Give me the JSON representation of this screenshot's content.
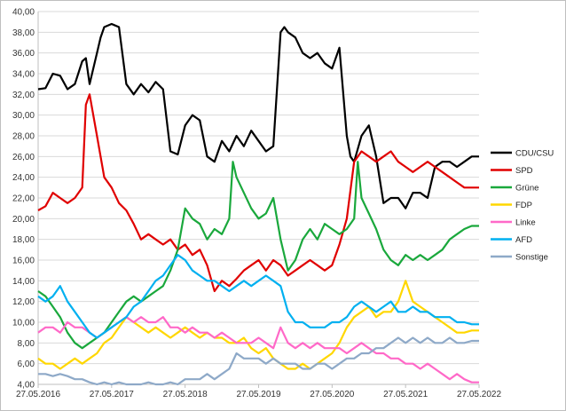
{
  "chart_data": {
    "type": "line",
    "title": "",
    "xlabel": "",
    "ylabel": "",
    "ylim": [
      4,
      40
    ],
    "y_ticks": [
      "4,00",
      "6,00",
      "8,00",
      "10,00",
      "12,00",
      "14,00",
      "16,00",
      "18,00",
      "20,00",
      "22,00",
      "24,00",
      "26,00",
      "28,00",
      "30,00",
      "32,00",
      "34,00",
      "36,00",
      "38,00",
      "40,00"
    ],
    "x_ticks": [
      "27.05.2016",
      "27.05.2017",
      "27.05.2018",
      "27.05.2019",
      "27.05.2020",
      "27.05.2021",
      "27.05.2022"
    ],
    "x_range": [
      2016.4,
      2022.4
    ],
    "grid": "horizontal",
    "legend_position": "right",
    "series": [
      {
        "name": "CDU/CSU",
        "color": "#000000",
        "x": [
          2016.4,
          2016.5,
          2016.6,
          2016.7,
          2016.8,
          2016.9,
          2017.0,
          2017.05,
          2017.1,
          2017.2,
          2017.25,
          2017.3,
          2017.4,
          2017.5,
          2017.6,
          2017.7,
          2017.8,
          2017.9,
          2018.0,
          2018.1,
          2018.2,
          2018.3,
          2018.4,
          2018.5,
          2018.6,
          2018.7,
          2018.8,
          2018.9,
          2019.0,
          2019.1,
          2019.2,
          2019.3,
          2019.4,
          2019.5,
          2019.6,
          2019.7,
          2019.75,
          2019.8,
          2019.9,
          2020.0,
          2020.1,
          2020.2,
          2020.3,
          2020.4,
          2020.5,
          2020.6,
          2020.65,
          2020.7,
          2020.8,
          2020.9,
          2021.0,
          2021.1,
          2021.2,
          2021.3,
          2021.4,
          2021.5,
          2021.6,
          2021.7,
          2021.8,
          2021.9,
          2022.0,
          2022.1,
          2022.2,
          2022.3,
          2022.4
        ],
        "values": [
          32.5,
          32.6,
          34.0,
          33.8,
          32.5,
          33.0,
          35.2,
          35.5,
          33.0,
          36.0,
          37.5,
          38.5,
          38.8,
          38.5,
          33.0,
          32.0,
          33.0,
          32.2,
          33.2,
          32.5,
          26.5,
          26.2,
          29.0,
          30.0,
          29.5,
          26.0,
          25.5,
          27.5,
          26.5,
          28.0,
          27.0,
          28.5,
          27.5,
          26.5,
          27.0,
          38.0,
          38.5,
          38.0,
          37.5,
          36.0,
          35.5,
          36.0,
          35.0,
          34.5,
          36.5,
          28.0,
          26.0,
          25.5,
          28.0,
          29.0,
          26.0,
          21.5,
          22.0,
          22.0,
          21.0,
          22.5,
          22.5,
          22.0,
          25.0,
          25.5,
          25.5,
          25.0,
          25.5,
          26.0,
          26.0
        ]
      },
      {
        "name": "SPD",
        "color": "#e00000",
        "x": [
          2016.4,
          2016.5,
          2016.6,
          2016.7,
          2016.8,
          2016.9,
          2017.0,
          2017.05,
          2017.1,
          2017.2,
          2017.3,
          2017.4,
          2017.5,
          2017.6,
          2017.7,
          2017.8,
          2017.9,
          2018.0,
          2018.1,
          2018.2,
          2018.3,
          2018.4,
          2018.5,
          2018.6,
          2018.7,
          2018.8,
          2018.9,
          2019.0,
          2019.1,
          2019.2,
          2019.3,
          2019.4,
          2019.5,
          2019.6,
          2019.7,
          2019.8,
          2019.9,
          2020.0,
          2020.1,
          2020.2,
          2020.3,
          2020.4,
          2020.5,
          2020.6,
          2020.7,
          2020.8,
          2020.9,
          2021.0,
          2021.1,
          2021.2,
          2021.3,
          2021.4,
          2021.5,
          2021.6,
          2021.7,
          2021.8,
          2021.9,
          2022.0,
          2022.1,
          2022.2,
          2022.3,
          2022.4
        ],
        "values": [
          20.8,
          21.2,
          22.5,
          22.0,
          21.5,
          22.0,
          23.0,
          31.0,
          32.0,
          28.0,
          24.0,
          23.0,
          21.5,
          20.8,
          19.5,
          18.0,
          18.5,
          18.0,
          17.5,
          18.0,
          17.0,
          17.5,
          16.5,
          17.0,
          15.5,
          13.0,
          14.0,
          13.5,
          14.2,
          15.0,
          15.5,
          16.0,
          15.0,
          16.0,
          15.5,
          14.5,
          15.0,
          15.5,
          16.0,
          15.5,
          15.0,
          15.5,
          17.5,
          20.0,
          25.5,
          26.5,
          26.0,
          25.5,
          26.0,
          26.5,
          25.5,
          25.0,
          24.5,
          25.0,
          25.5,
          25.0,
          24.5,
          24.0,
          23.5,
          23.0,
          23.0,
          23.0
        ]
      },
      {
        "name": "Grüne",
        "color": "#1aa83c",
        "x": [
          2016.4,
          2016.5,
          2016.6,
          2016.7,
          2016.8,
          2016.9,
          2017.0,
          2017.1,
          2017.2,
          2017.3,
          2017.4,
          2017.5,
          2017.6,
          2017.7,
          2017.8,
          2017.9,
          2018.0,
          2018.1,
          2018.2,
          2018.3,
          2018.4,
          2018.5,
          2018.6,
          2018.7,
          2018.8,
          2018.9,
          2019.0,
          2019.05,
          2019.1,
          2019.2,
          2019.3,
          2019.4,
          2019.5,
          2019.6,
          2019.7,
          2019.8,
          2019.9,
          2020.0,
          2020.1,
          2020.2,
          2020.3,
          2020.4,
          2020.5,
          2020.6,
          2020.7,
          2020.75,
          2020.8,
          2020.9,
          2021.0,
          2021.1,
          2021.2,
          2021.3,
          2021.4,
          2021.5,
          2021.6,
          2021.7,
          2021.8,
          2021.9,
          2022.0,
          2022.1,
          2022.2,
          2022.3,
          2022.4
        ],
        "values": [
          13.0,
          12.5,
          11.5,
          10.5,
          9.0,
          8.0,
          7.5,
          8.0,
          8.5,
          9.0,
          10.0,
          11.0,
          12.0,
          12.5,
          12.0,
          12.5,
          13.0,
          13.5,
          15.0,
          17.0,
          21.0,
          20.0,
          19.5,
          18.0,
          19.0,
          18.5,
          20.0,
          25.5,
          24.0,
          22.5,
          21.0,
          20.0,
          20.5,
          22.0,
          18.0,
          15.0,
          16.0,
          18.0,
          19.0,
          18.0,
          19.5,
          19.0,
          18.5,
          19.0,
          20.0,
          25.5,
          22.0,
          20.5,
          19.0,
          17.0,
          16.0,
          15.5,
          16.5,
          16.0,
          16.5,
          16.0,
          16.5,
          17.0,
          18.0,
          18.5,
          19.0,
          19.3,
          19.3
        ]
      },
      {
        "name": "FDP",
        "color": "#ffd700",
        "x": [
          2016.4,
          2016.5,
          2016.6,
          2016.7,
          2016.8,
          2016.9,
          2017.0,
          2017.1,
          2017.2,
          2017.3,
          2017.4,
          2017.5,
          2017.6,
          2017.7,
          2017.8,
          2017.9,
          2018.0,
          2018.1,
          2018.2,
          2018.3,
          2018.4,
          2018.5,
          2018.6,
          2018.7,
          2018.8,
          2018.9,
          2019.0,
          2019.1,
          2019.2,
          2019.3,
          2019.4,
          2019.5,
          2019.6,
          2019.7,
          2019.8,
          2019.9,
          2020.0,
          2020.1,
          2020.2,
          2020.3,
          2020.4,
          2020.5,
          2020.6,
          2020.7,
          2020.8,
          2020.9,
          2021.0,
          2021.1,
          2021.2,
          2021.3,
          2021.4,
          2021.5,
          2021.6,
          2021.7,
          2021.8,
          2021.9,
          2022.0,
          2022.1,
          2022.2,
          2022.3,
          2022.4
        ],
        "values": [
          6.5,
          6.0,
          6.0,
          5.5,
          6.0,
          6.5,
          6.0,
          6.5,
          7.0,
          8.0,
          8.5,
          9.5,
          10.5,
          10.0,
          9.5,
          9.0,
          9.5,
          9.0,
          8.5,
          9.0,
          9.5,
          9.0,
          8.5,
          9.0,
          8.5,
          8.5,
          8.0,
          8.0,
          8.5,
          7.5,
          7.0,
          7.5,
          6.5,
          6.0,
          5.5,
          5.5,
          6.0,
          5.5,
          6.0,
          6.5,
          7.0,
          8.0,
          9.5,
          10.5,
          11.0,
          11.5,
          10.5,
          11.0,
          11.0,
          12.0,
          14.0,
          12.0,
          11.5,
          11.0,
          10.5,
          10.0,
          9.5,
          9.0,
          9.0,
          9.2,
          9.2
        ]
      },
      {
        "name": "Linke",
        "color": "#ff69c8",
        "x": [
          2016.4,
          2016.5,
          2016.6,
          2016.7,
          2016.8,
          2016.9,
          2017.0,
          2017.1,
          2017.2,
          2017.3,
          2017.4,
          2017.5,
          2017.6,
          2017.7,
          2017.8,
          2017.9,
          2018.0,
          2018.1,
          2018.2,
          2018.3,
          2018.4,
          2018.5,
          2018.6,
          2018.7,
          2018.8,
          2018.9,
          2019.0,
          2019.1,
          2019.2,
          2019.3,
          2019.4,
          2019.5,
          2019.6,
          2019.7,
          2019.8,
          2019.9,
          2020.0,
          2020.1,
          2020.2,
          2020.3,
          2020.4,
          2020.5,
          2020.6,
          2020.7,
          2020.8,
          2020.9,
          2021.0,
          2021.1,
          2021.2,
          2021.3,
          2021.4,
          2021.5,
          2021.6,
          2021.7,
          2021.8,
          2021.9,
          2022.0,
          2022.1,
          2022.2,
          2022.3,
          2022.4
        ],
        "values": [
          9.0,
          9.5,
          9.5,
          9.0,
          10.0,
          9.5,
          9.5,
          9.0,
          8.5,
          9.0,
          9.5,
          10.0,
          10.5,
          10.0,
          10.5,
          10.0,
          10.0,
          10.5,
          9.5,
          9.5,
          9.0,
          9.5,
          9.0,
          9.0,
          8.5,
          9.0,
          8.5,
          8.0,
          8.0,
          8.0,
          8.5,
          8.0,
          7.5,
          9.5,
          8.0,
          7.5,
          8.0,
          7.5,
          8.0,
          7.5,
          7.5,
          7.5,
          7.0,
          7.5,
          8.0,
          7.5,
          7.0,
          7.0,
          6.5,
          6.5,
          6.0,
          6.0,
          5.5,
          6.0,
          5.5,
          5.0,
          4.5,
          5.0,
          4.5,
          4.2,
          4.2
        ]
      },
      {
        "name": "AFD",
        "color": "#00b0f0",
        "x": [
          2016.4,
          2016.5,
          2016.6,
          2016.7,
          2016.8,
          2016.9,
          2017.0,
          2017.1,
          2017.2,
          2017.3,
          2017.4,
          2017.5,
          2017.6,
          2017.7,
          2017.8,
          2017.9,
          2018.0,
          2018.1,
          2018.2,
          2018.3,
          2018.4,
          2018.5,
          2018.6,
          2018.7,
          2018.8,
          2018.9,
          2019.0,
          2019.1,
          2019.2,
          2019.3,
          2019.4,
          2019.5,
          2019.6,
          2019.7,
          2019.8,
          2019.9,
          2020.0,
          2020.1,
          2020.2,
          2020.3,
          2020.4,
          2020.5,
          2020.6,
          2020.7,
          2020.8,
          2020.9,
          2021.0,
          2021.1,
          2021.2,
          2021.3,
          2021.4,
          2021.5,
          2021.6,
          2021.7,
          2021.8,
          2021.9,
          2022.0,
          2022.1,
          2022.2,
          2022.3,
          2022.4
        ],
        "values": [
          12.5,
          12.0,
          12.5,
          13.5,
          12.0,
          11.0,
          10.0,
          9.0,
          8.5,
          9.0,
          9.5,
          10.0,
          10.5,
          11.5,
          12.0,
          13.0,
          14.0,
          14.5,
          15.5,
          16.5,
          16.0,
          15.0,
          14.5,
          14.0,
          14.0,
          13.5,
          13.0,
          13.5,
          14.0,
          13.5,
          14.0,
          14.5,
          14.0,
          13.5,
          11.0,
          10.0,
          10.0,
          9.5,
          9.5,
          9.5,
          10.0,
          10.0,
          10.5,
          11.5,
          12.0,
          11.5,
          11.0,
          11.5,
          12.0,
          11.0,
          11.0,
          11.5,
          11.0,
          11.0,
          10.5,
          10.5,
          10.5,
          10.0,
          10.0,
          9.8,
          9.8
        ]
      },
      {
        "name": "Sonstige",
        "color": "#8ea9c8",
        "x": [
          2016.4,
          2016.5,
          2016.6,
          2016.7,
          2016.8,
          2016.9,
          2017.0,
          2017.1,
          2017.2,
          2017.3,
          2017.4,
          2017.5,
          2017.6,
          2017.7,
          2017.8,
          2017.9,
          2018.0,
          2018.1,
          2018.2,
          2018.3,
          2018.4,
          2018.5,
          2018.6,
          2018.7,
          2018.8,
          2018.9,
          2019.0,
          2019.1,
          2019.2,
          2019.3,
          2019.4,
          2019.5,
          2019.6,
          2019.7,
          2019.8,
          2019.9,
          2020.0,
          2020.1,
          2020.2,
          2020.3,
          2020.4,
          2020.5,
          2020.6,
          2020.7,
          2020.8,
          2020.9,
          2021.0,
          2021.1,
          2021.2,
          2021.3,
          2021.4,
          2021.5,
          2021.6,
          2021.7,
          2021.8,
          2021.9,
          2022.0,
          2022.1,
          2022.2,
          2022.3,
          2022.4
        ],
        "values": [
          5.0,
          5.0,
          4.8,
          5.0,
          4.8,
          4.5,
          4.5,
          4.2,
          4.0,
          4.2,
          4.0,
          4.2,
          4.0,
          4.0,
          4.0,
          4.2,
          4.0,
          4.0,
          4.2,
          4.0,
          4.5,
          4.5,
          4.5,
          5.0,
          4.5,
          5.0,
          5.5,
          7.0,
          6.5,
          6.5,
          6.5,
          6.0,
          6.5,
          6.0,
          6.0,
          6.0,
          5.5,
          5.5,
          6.0,
          6.0,
          5.5,
          6.0,
          6.5,
          6.5,
          7.0,
          7.0,
          7.5,
          7.5,
          8.0,
          8.5,
          8.0,
          8.5,
          8.0,
          8.5,
          8.0,
          8.0,
          8.5,
          8.0,
          8.0,
          8.2,
          8.2
        ]
      }
    ]
  }
}
